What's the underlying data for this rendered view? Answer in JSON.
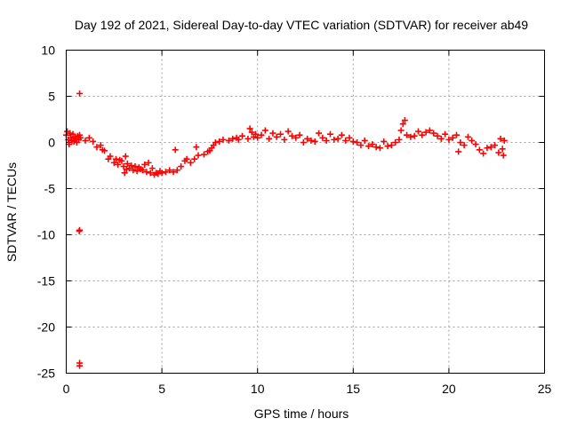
{
  "chart_data": {
    "type": "scatter",
    "title": "Day 192 of 2021, Sidereal Day-to-day VTEC variation (SDTVAR) for receiver ab49",
    "xlabel": "GPS time / hours",
    "ylabel": "SDTVAR / TECUs",
    "xlim": [
      0,
      25
    ],
    "ylim": [
      -25,
      10
    ],
    "x_ticks": [
      0,
      5,
      10,
      15,
      20,
      25
    ],
    "x_tick_labels": [
      "0",
      "5",
      "10",
      "15",
      "20",
      "25"
    ],
    "y_ticks": [
      10,
      5,
      0,
      -5,
      -10,
      -15,
      -20,
      -25
    ],
    "y_tick_labels": [
      "10",
      "5",
      "0",
      "-5",
      "-10",
      "-15",
      "-20",
      "-25"
    ],
    "grid": true,
    "marker": "plus",
    "series": [
      {
        "name": "SDTVAR",
        "color": "#ff0000",
        "points": [
          [
            0.0,
            0.8
          ],
          [
            0.05,
            1.2
          ],
          [
            0.1,
            0.3
          ],
          [
            0.15,
            -0.2
          ],
          [
            0.2,
            1.0
          ],
          [
            0.25,
            0.5
          ],
          [
            0.3,
            0.2
          ],
          [
            0.35,
            0.9
          ],
          [
            0.4,
            0.1
          ],
          [
            0.45,
            0.6
          ],
          [
            0.5,
            0.4
          ],
          [
            0.55,
            0.0
          ],
          [
            0.6,
            0.7
          ],
          [
            0.65,
            0.3
          ],
          [
            0.7,
            0.8
          ],
          [
            0.75,
            0.5
          ],
          [
            0.7,
            5.3
          ],
          [
            0.7,
            -9.5
          ],
          [
            0.68,
            -9.6
          ],
          [
            0.7,
            -23.9
          ],
          [
            0.7,
            -24.2
          ],
          [
            1.0,
            0.2
          ],
          [
            1.2,
            0.5
          ],
          [
            1.4,
            0.1
          ],
          [
            1.6,
            -0.5
          ],
          [
            1.8,
            -0.3
          ],
          [
            1.9,
            -0.8
          ],
          [
            2.0,
            -0.9
          ],
          [
            2.2,
            -1.8
          ],
          [
            2.3,
            -1.5
          ],
          [
            2.5,
            -2.2
          ],
          [
            2.6,
            -1.8
          ],
          [
            2.7,
            -2.4
          ],
          [
            2.8,
            -1.9
          ],
          [
            2.9,
            -2.0
          ],
          [
            3.0,
            -2.6
          ],
          [
            3.05,
            -3.3
          ],
          [
            3.1,
            -1.5
          ],
          [
            3.15,
            -2.9
          ],
          [
            3.2,
            -2.3
          ],
          [
            3.3,
            -2.8
          ],
          [
            3.4,
            -2.5
          ],
          [
            3.5,
            -3.0
          ],
          [
            3.6,
            -2.6
          ],
          [
            3.7,
            -3.1
          ],
          [
            3.8,
            -2.7
          ],
          [
            3.9,
            -2.9
          ],
          [
            4.0,
            -3.0
          ],
          [
            4.1,
            -2.4
          ],
          [
            4.2,
            -3.2
          ],
          [
            4.3,
            -2.2
          ],
          [
            4.4,
            -3.3
          ],
          [
            4.5,
            -2.8
          ],
          [
            4.6,
            -3.5
          ],
          [
            4.7,
            -3.3
          ],
          [
            4.8,
            -3.4
          ],
          [
            4.9,
            -3.1
          ],
          [
            5.0,
            -3.3
          ],
          [
            5.2,
            -3.2
          ],
          [
            5.4,
            -3.0
          ],
          [
            5.6,
            -3.2
          ],
          [
            5.7,
            -0.8
          ],
          [
            5.8,
            -3.0
          ],
          [
            6.0,
            -2.6
          ],
          [
            6.2,
            -2.0
          ],
          [
            6.3,
            -1.8
          ],
          [
            6.5,
            -2.2
          ],
          [
            6.7,
            -1.8
          ],
          [
            6.8,
            -0.5
          ],
          [
            6.9,
            -1.4
          ],
          [
            7.2,
            -1.3
          ],
          [
            7.4,
            -1.0
          ],
          [
            7.5,
            -0.9
          ],
          [
            7.6,
            -0.6
          ],
          [
            7.7,
            -0.3
          ],
          [
            7.8,
            0.0
          ],
          [
            8.0,
            0.1
          ],
          [
            8.2,
            0.3
          ],
          [
            8.5,
            0.2
          ],
          [
            8.7,
            0.4
          ],
          [
            8.9,
            0.5
          ],
          [
            9.0,
            0.3
          ],
          [
            9.2,
            0.7
          ],
          [
            9.5,
            0.4
          ],
          [
            9.6,
            1.5
          ],
          [
            9.7,
            1.1
          ],
          [
            9.8,
            0.6
          ],
          [
            9.9,
            0.9
          ],
          [
            10.0,
            0.5
          ],
          [
            10.2,
            0.8
          ],
          [
            10.4,
            1.3
          ],
          [
            10.6,
            0.4
          ],
          [
            10.8,
            1.0
          ],
          [
            11.0,
            0.6
          ],
          [
            11.2,
            0.9
          ],
          [
            11.4,
            0.3
          ],
          [
            11.6,
            1.2
          ],
          [
            11.8,
            0.7
          ],
          [
            12.0,
            0.5
          ],
          [
            12.2,
            0.8
          ],
          [
            12.4,
            0.0
          ],
          [
            12.6,
            0.4
          ],
          [
            12.8,
            0.2
          ],
          [
            13.0,
            0.1
          ],
          [
            13.2,
            1.0
          ],
          [
            13.4,
            0.5
          ],
          [
            13.6,
            0.2
          ],
          [
            13.8,
            0.9
          ],
          [
            14.0,
            0.3
          ],
          [
            14.2,
            0.4
          ],
          [
            14.4,
            0.8
          ],
          [
            14.6,
            0.2
          ],
          [
            14.8,
            0.5
          ],
          [
            15.0,
            0.1
          ],
          [
            15.2,
            0.0
          ],
          [
            15.4,
            -0.3
          ],
          [
            15.6,
            0.2
          ],
          [
            15.8,
            -0.4
          ],
          [
            16.0,
            -0.2
          ],
          [
            16.2,
            -0.5
          ],
          [
            16.4,
            -0.6
          ],
          [
            16.6,
            0.1
          ],
          [
            16.8,
            -0.4
          ],
          [
            17.0,
            -0.3
          ],
          [
            17.2,
            0.0
          ],
          [
            17.4,
            0.3
          ],
          [
            17.5,
            1.3
          ],
          [
            17.6,
            2.0
          ],
          [
            17.7,
            2.4
          ],
          [
            17.8,
            0.8
          ],
          [
            18.0,
            0.6
          ],
          [
            18.2,
            0.7
          ],
          [
            18.4,
            1.2
          ],
          [
            18.6,
            0.8
          ],
          [
            18.8,
            1.1
          ],
          [
            19.0,
            1.3
          ],
          [
            19.2,
            1.0
          ],
          [
            19.4,
            0.7
          ],
          [
            19.6,
            0.4
          ],
          [
            19.8,
            0.9
          ],
          [
            20.0,
            0.3
          ],
          [
            20.2,
            0.5
          ],
          [
            20.4,
            0.8
          ],
          [
            20.5,
            -1.0
          ],
          [
            20.6,
            0.0
          ],
          [
            20.8,
            -0.3
          ],
          [
            21.0,
            0.6
          ],
          [
            21.2,
            0.2
          ],
          [
            21.4,
            -0.2
          ],
          [
            21.6,
            -0.8
          ],
          [
            21.8,
            -1.2
          ],
          [
            22.0,
            -0.6
          ],
          [
            22.2,
            -0.5
          ],
          [
            22.4,
            -0.3
          ],
          [
            22.6,
            -1.1
          ],
          [
            22.7,
            0.4
          ],
          [
            22.8,
            -0.7
          ],
          [
            22.85,
            -1.4
          ],
          [
            22.9,
            0.2
          ]
        ]
      }
    ]
  }
}
